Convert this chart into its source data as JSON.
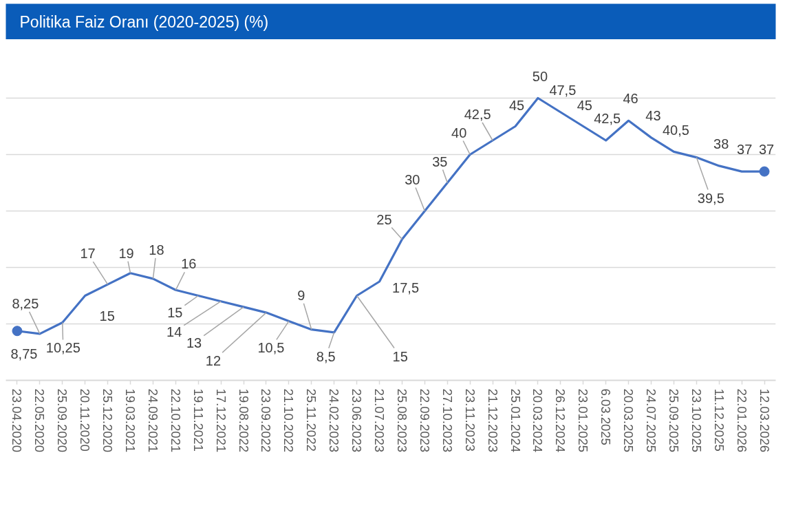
{
  "chart_data": {
    "type": "line",
    "title": "Politika Faiz Oranı (2020-2025) (%)",
    "categories": [
      "23.04.2020",
      "22.05.2020",
      "25.09.2020",
      "20.11.2020",
      "25.12.2020",
      "19.03.2021",
      "24.09.2021",
      "22.10.2021",
      "19.11.2021",
      "17.12.2021",
      "19.08.2022",
      "23.09.2022",
      "21.10.2022",
      "25.11.2022",
      "24.02.2023",
      "23.06.2023",
      "21.07.2023",
      "25.08.2023",
      "22.09.2023",
      "27.10.2023",
      "23.11.2023",
      "21.12.2023",
      "25.01.2024",
      "20.03.2024",
      "26.12.2024",
      "23.01.2025",
      "6.03.2025",
      "20.03.2025",
      "24.07.2025",
      "25.09.2025",
      "23.10.2025",
      "11.12.2025",
      "22.01.2026",
      "12.03.2026"
    ],
    "series": [
      {
        "color": "#4472c4",
        "values": [
          8.75,
          8.25,
          10.25,
          15,
          17,
          19,
          18,
          16,
          15,
          14,
          13,
          12,
          10.5,
          9,
          8.5,
          15,
          17.5,
          25,
          30,
          35,
          40,
          42.5,
          45,
          50,
          47.5,
          45,
          42.5,
          46,
          43,
          40.5,
          39.5,
          38,
          37,
          37
        ],
        "value_labels": [
          "8,75",
          "8,25",
          "10,25",
          "15",
          "17",
          "19",
          "18",
          "16",
          "15",
          "14",
          "13",
          "12",
          "10,5",
          "9",
          "8,5",
          "15",
          "17,5",
          "25",
          "30",
          "35",
          "40",
          "42,5",
          "45",
          "50",
          "47,5",
          "45",
          "42,5",
          "46",
          "43",
          "40,5",
          "39,5",
          "38",
          "37",
          "37"
        ]
      },
      {
        "type": "scatter",
        "color": "#4472c4",
        "marker": "circle",
        "x": [
          "23.04.2020",
          "12.03.2026"
        ],
        "values": [
          8.75,
          37
        ]
      }
    ],
    "yticks": [
      {
        "value": 0,
        "label": null
      },
      {
        "value": 10,
        "label": null
      },
      {
        "value": 20,
        "label": null
      },
      {
        "value": 30,
        "label": null
      },
      {
        "value": 40,
        "label": null
      },
      {
        "value": 50,
        "label": null
      }
    ],
    "grid": "y",
    "tick_labels": "x"
  }
}
